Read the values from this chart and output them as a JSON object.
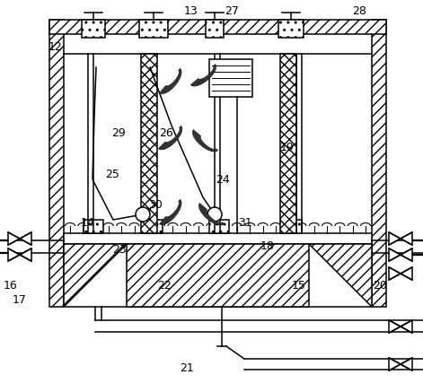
{
  "bg": "#ffffff",
  "lc": "#000000",
  "fig_w": 4.71,
  "fig_h": 4.37,
  "dpi": 100,
  "labels": [
    [
      "12",
      62,
      52
    ],
    [
      "13",
      213,
      12
    ],
    [
      "27",
      258,
      12
    ],
    [
      "28",
      400,
      12
    ],
    [
      "29",
      132,
      148
    ],
    [
      "26",
      185,
      148
    ],
    [
      "25",
      125,
      195
    ],
    [
      "24",
      248,
      200
    ],
    [
      "19",
      320,
      165
    ],
    [
      "30",
      173,
      228
    ],
    [
      "14",
      98,
      248
    ],
    [
      "31",
      273,
      248
    ],
    [
      "23",
      133,
      278
    ],
    [
      "18",
      298,
      275
    ],
    [
      "22",
      183,
      318
    ],
    [
      "15",
      333,
      318
    ],
    [
      "16",
      12,
      318
    ],
    [
      "17",
      22,
      335
    ],
    [
      "20",
      423,
      318
    ],
    [
      "21",
      208,
      410
    ]
  ]
}
